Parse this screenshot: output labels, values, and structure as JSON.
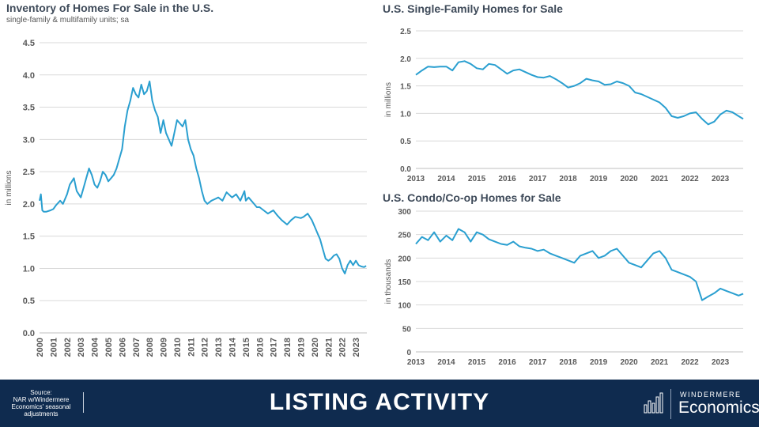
{
  "chart_data": [
    {
      "type": "line",
      "title": "Inventory of Homes For Sale in the U.S.",
      "subtitle": "single-family & multifamily units; sa",
      "ylabel": "in millions",
      "ylim": [
        0,
        4.5
      ],
      "yticks": [
        "0.0",
        "0.5",
        "1.0",
        "1.5",
        "2.0",
        "2.5",
        "3.0",
        "3.5",
        "4.0",
        "4.5"
      ],
      "xlim": [
        2000,
        2023.8
      ],
      "xticks": [
        "2000",
        "2001",
        "2002",
        "2003",
        "2004",
        "2005",
        "2006",
        "2007",
        "2008",
        "2009",
        "2010",
        "2011",
        "2012",
        "2013",
        "2014",
        "2015",
        "2016",
        "2017",
        "2018",
        "2019",
        "2020",
        "2021",
        "2022",
        "2023"
      ],
      "color": "#2a9fd0",
      "series": [
        {
          "x": [
            2000,
            2000.1,
            2000.2,
            2000.3,
            2000.5,
            2000.8,
            2001,
            2001.2,
            2001.5,
            2001.7,
            2002,
            2002.2,
            2002.5,
            2002.7,
            2003,
            2003.2,
            2003.4,
            2003.6,
            2003.8,
            2004,
            2004.2,
            2004.4,
            2004.6,
            2004.8,
            2005,
            2005.2,
            2005.4,
            2005.6,
            2005.8,
            2006,
            2006.2,
            2006.4,
            2006.6,
            2006.8,
            2007,
            2007.2,
            2007.4,
            2007.6,
            2007.8,
            2008,
            2008.2,
            2008.4,
            2008.6,
            2008.8,
            2009,
            2009.2,
            2009.4,
            2009.6,
            2009.8,
            2010,
            2010.2,
            2010.4,
            2010.6,
            2010.8,
            2011,
            2011.2,
            2011.4,
            2011.6,
            2011.8,
            2012,
            2012.2,
            2012.5,
            2012.8,
            2013,
            2013.3,
            2013.6,
            2014,
            2014.3,
            2014.6,
            2014.9,
            2015,
            2015.2,
            2015.4,
            2015.6,
            2015.8,
            2016,
            2016.3,
            2016.6,
            2017,
            2017.3,
            2017.6,
            2018,
            2018.3,
            2018.6,
            2019,
            2019.2,
            2019.5,
            2019.8,
            2020,
            2020.2,
            2020.4,
            2020.6,
            2020.8,
            2021,
            2021.2,
            2021.4,
            2021.6,
            2021.8,
            2022,
            2022.2,
            2022.4,
            2022.6,
            2022.8,
            2023,
            2023.2,
            2023.4,
            2023.6,
            2023.75
          ],
          "y": [
            2.05,
            2.15,
            1.9,
            1.88,
            1.88,
            1.9,
            1.92,
            1.98,
            2.05,
            2.0,
            2.15,
            2.3,
            2.4,
            2.2,
            2.1,
            2.25,
            2.4,
            2.55,
            2.45,
            2.3,
            2.25,
            2.35,
            2.5,
            2.45,
            2.35,
            2.4,
            2.45,
            2.55,
            2.7,
            2.85,
            3.2,
            3.45,
            3.6,
            3.8,
            3.7,
            3.65,
            3.85,
            3.7,
            3.75,
            3.9,
            3.6,
            3.45,
            3.35,
            3.1,
            3.3,
            3.1,
            3.0,
            2.9,
            3.1,
            3.3,
            3.25,
            3.2,
            3.3,
            3.0,
            2.85,
            2.75,
            2.55,
            2.4,
            2.2,
            2.05,
            2.0,
            2.05,
            2.08,
            2.1,
            2.05,
            2.18,
            2.1,
            2.15,
            2.05,
            2.2,
            2.05,
            2.1,
            2.05,
            2.0,
            1.95,
            1.95,
            1.9,
            1.85,
            1.9,
            1.82,
            1.75,
            1.68,
            1.75,
            1.8,
            1.78,
            1.8,
            1.85,
            1.75,
            1.65,
            1.55,
            1.45,
            1.3,
            1.15,
            1.12,
            1.15,
            1.2,
            1.22,
            1.15,
            1.0,
            0.92,
            1.05,
            1.12,
            1.05,
            1.12,
            1.05,
            1.03,
            1.02,
            1.04
          ]
        }
      ]
    },
    {
      "type": "line",
      "title": "U.S. Single-Family Homes for Sale",
      "ylabel": "in millions",
      "ylim": [
        0,
        2.5
      ],
      "yticks": [
        "0.0",
        "0.5",
        "1.0",
        "1.5",
        "2.0",
        "2.5"
      ],
      "xlim": [
        2013,
        2023.75
      ],
      "xticks": [
        "2013",
        "2014",
        "2015",
        "2016",
        "2017",
        "2018",
        "2019",
        "2020",
        "2021",
        "2022",
        "2023"
      ],
      "color": "#2a9fd0",
      "series": [
        {
          "x": [
            2013,
            2013.2,
            2013.4,
            2013.6,
            2013.8,
            2014,
            2014.2,
            2014.4,
            2014.6,
            2014.8,
            2015,
            2015.2,
            2015.4,
            2015.6,
            2015.8,
            2016,
            2016.2,
            2016.4,
            2016.6,
            2016.8,
            2017,
            2017.2,
            2017.4,
            2017.6,
            2017.8,
            2018,
            2018.2,
            2018.4,
            2018.6,
            2018.8,
            2019,
            2019.2,
            2019.4,
            2019.6,
            2019.8,
            2020,
            2020.2,
            2020.4,
            2020.6,
            2020.8,
            2021,
            2021.2,
            2021.4,
            2021.6,
            2021.8,
            2022,
            2022.2,
            2022.4,
            2022.6,
            2022.8,
            2023,
            2023.2,
            2023.4,
            2023.6,
            2023.75
          ],
          "y": [
            1.7,
            1.78,
            1.85,
            1.84,
            1.85,
            1.85,
            1.78,
            1.93,
            1.95,
            1.9,
            1.82,
            1.8,
            1.9,
            1.88,
            1.8,
            1.72,
            1.78,
            1.8,
            1.75,
            1.7,
            1.66,
            1.65,
            1.68,
            1.62,
            1.55,
            1.47,
            1.5,
            1.55,
            1.63,
            1.6,
            1.58,
            1.52,
            1.53,
            1.58,
            1.55,
            1.5,
            1.38,
            1.35,
            1.3,
            1.25,
            1.2,
            1.1,
            0.95,
            0.92,
            0.95,
            1.0,
            1.02,
            0.9,
            0.8,
            0.85,
            0.98,
            1.05,
            1.02,
            0.95,
            0.9
          ]
        }
      ]
    },
    {
      "type": "line",
      "title": "U.S. Condo/Co-op Homes for Sale",
      "ylabel": "in thousands",
      "ylim": [
        0,
        300
      ],
      "yticks": [
        "0",
        "50",
        "100",
        "150",
        "200",
        "250",
        "300"
      ],
      "xlim": [
        2013,
        2023.75
      ],
      "xticks": [
        "2013",
        "2014",
        "2015",
        "2016",
        "2017",
        "2018",
        "2019",
        "2020",
        "2021",
        "2022",
        "2023"
      ],
      "color": "#2a9fd0",
      "series": [
        {
          "x": [
            2013,
            2013.2,
            2013.4,
            2013.6,
            2013.8,
            2014,
            2014.2,
            2014.4,
            2014.6,
            2014.8,
            2015,
            2015.2,
            2015.4,
            2015.6,
            2015.8,
            2016,
            2016.2,
            2016.4,
            2016.6,
            2016.8,
            2017,
            2017.2,
            2017.4,
            2017.6,
            2017.8,
            2018,
            2018.2,
            2018.4,
            2018.6,
            2018.8,
            2019,
            2019.2,
            2019.4,
            2019.6,
            2019.8,
            2020,
            2020.2,
            2020.4,
            2020.6,
            2020.8,
            2021,
            2021.2,
            2021.4,
            2021.6,
            2021.8,
            2022,
            2022.2,
            2022.4,
            2022.6,
            2022.8,
            2023,
            2023.2,
            2023.4,
            2023.6,
            2023.75
          ],
          "y": [
            230,
            245,
            238,
            255,
            235,
            248,
            238,
            262,
            255,
            235,
            255,
            250,
            240,
            235,
            230,
            228,
            235,
            225,
            222,
            220,
            215,
            218,
            210,
            205,
            200,
            195,
            190,
            205,
            210,
            215,
            200,
            205,
            215,
            220,
            205,
            190,
            185,
            180,
            195,
            210,
            215,
            200,
            175,
            170,
            165,
            160,
            150,
            110,
            118,
            125,
            135,
            130,
            125,
            120,
            124
          ]
        }
      ]
    }
  ],
  "source_label": "Source:",
  "source_text": "NAR w/Windermere Economics' seasonal adjustments",
  "footer_title": "LISTING ACTIVITY",
  "brand": {
    "top": "WINDERMERE",
    "bottom": "Economics"
  },
  "colors": {
    "line": "#2a9fd0",
    "footer": "#0f2b4f",
    "title": "#3f4b5a"
  }
}
